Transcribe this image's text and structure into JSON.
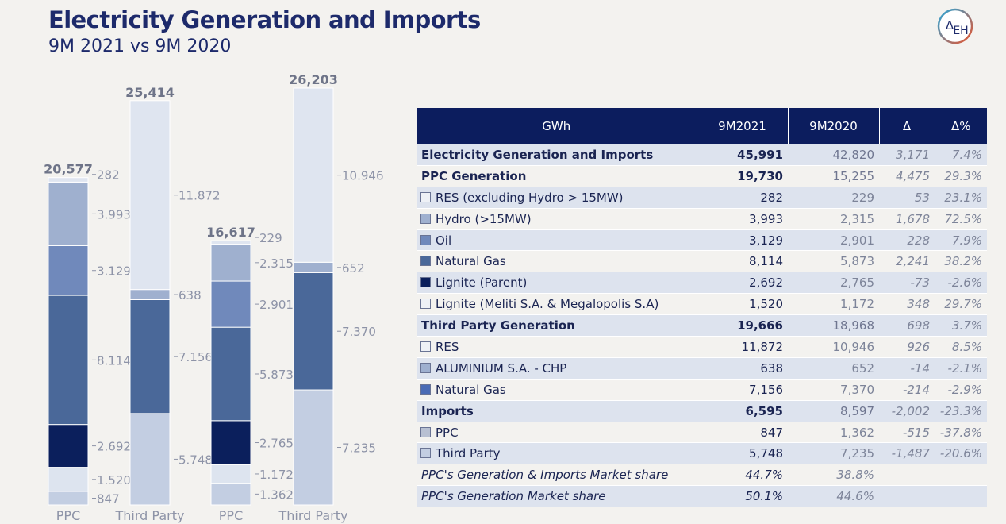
{
  "header": {
    "title": "Electricity Generation and Imports",
    "subtitle": "9M 2021 vs 9M 2020"
  },
  "logo": {
    "icon": "deh-logo-icon",
    "text_main": "Δ",
    "text_sub": "EH",
    "ring_colors": [
      "#2aa6d9",
      "#e8542e"
    ]
  },
  "chart_data": {
    "type": "bar",
    "stacked": true,
    "categories": [
      "PPC",
      "Third Party",
      "PPC",
      "Third Party"
    ],
    "totals": [
      "20,577",
      "25,414",
      "16,617",
      "26,203"
    ],
    "total_values": [
      20577,
      25414,
      16617,
      26203
    ],
    "ylim": [
      0,
      26203
    ],
    "bars": [
      {
        "category": "PPC",
        "segments": [
          {
            "value": 847,
            "label": "847",
            "color": "#c3cee2"
          },
          {
            "value": 1520,
            "label": "1.520",
            "color": "#dde4ef"
          },
          {
            "value": 2692,
            "label": "2.692",
            "color": "#0b1f5c"
          },
          {
            "value": 8114,
            "label": "8.114",
            "color": "#4a6899"
          },
          {
            "value": 3129,
            "label": "3.129",
            "color": "#7089bb"
          },
          {
            "value": 3993,
            "label": "3.993",
            "color": "#9fb0cf"
          },
          {
            "value": 282,
            "label": "282",
            "color": "#dfe5f0"
          }
        ]
      },
      {
        "category": "Third Party",
        "segments": [
          {
            "value": 5748,
            "label": "5.748",
            "color": "#c3cee2"
          },
          {
            "value": 7156,
            "label": "7.156",
            "color": "#4a6899"
          },
          {
            "value": 638,
            "label": "638",
            "color": "#9fb0cf"
          },
          {
            "value": 11872,
            "label": "11.872",
            "color": "#dfe5f0"
          }
        ]
      },
      {
        "category": "PPC",
        "segments": [
          {
            "value": 1362,
            "label": "1.362",
            "color": "#c3cee2"
          },
          {
            "value": 1172,
            "label": "1.172",
            "color": "#dde4ef"
          },
          {
            "value": 2765,
            "label": "2.765",
            "color": "#0b1f5c"
          },
          {
            "value": 5873,
            "label": "5.873",
            "color": "#4a6899"
          },
          {
            "value": 2901,
            "label": "2.901",
            "color": "#7089bb"
          },
          {
            "value": 2315,
            "label": "2.315",
            "color": "#9fb0cf"
          },
          {
            "value": 229,
            "label": "229",
            "color": "#dfe5f0"
          }
        ]
      },
      {
        "category": "Third Party",
        "segments": [
          {
            "value": 7235,
            "label": "7.235",
            "color": "#c3cee2"
          },
          {
            "value": 7370,
            "label": "7.370",
            "color": "#4a6899"
          },
          {
            "value": 652,
            "label": "652",
            "color": "#9fb0cf"
          },
          {
            "value": 10946,
            "label": "10.946",
            "color": "#dfe5f0"
          }
        ]
      }
    ]
  },
  "table": {
    "headers": [
      "GWh",
      "9M2021",
      "9M2020",
      "Δ",
      "Δ%"
    ],
    "rows": [
      {
        "kind": "main",
        "shade": true,
        "swatch": "",
        "label": "Electricity Generation and Imports",
        "v2021": "45,991",
        "v2020": "42,820",
        "delta": "3,171",
        "pct": "7.4%"
      },
      {
        "kind": "main",
        "shade": false,
        "swatch": "",
        "label": "PPC Generation",
        "v2021": "19,730",
        "v2020": "15,255",
        "delta": "4,475",
        "pct": "29.3%"
      },
      {
        "kind": "sub",
        "shade": true,
        "swatch": "#eef1f6",
        "label": "RES (excluding Hydro > 15MW)",
        "v2021": "282",
        "v2020": "229",
        "delta": "53",
        "pct": "23.1%"
      },
      {
        "kind": "sub",
        "shade": false,
        "swatch": "#9fb0cf",
        "label": "Hydro (>15MW)",
        "v2021": "3,993",
        "v2020": "2,315",
        "delta": "1,678",
        "pct": "72.5%"
      },
      {
        "kind": "sub",
        "shade": true,
        "swatch": "#7089bb",
        "label": "Oil",
        "v2021": "3,129",
        "v2020": "2,901",
        "delta": "228",
        "pct": "7.9%"
      },
      {
        "kind": "sub",
        "shade": false,
        "swatch": "#4a6899",
        "label": "Natural Gas",
        "v2021": "8,114",
        "v2020": "5,873",
        "delta": "2,241",
        "pct": "38.2%"
      },
      {
        "kind": "sub",
        "shade": true,
        "swatch": "#0b1f5c",
        "label": "Lignite (Parent)",
        "v2021": "2,692",
        "v2020": "2,765",
        "delta": "-73",
        "pct": "-2.6%"
      },
      {
        "kind": "sub",
        "shade": false,
        "swatch": "#eef1f6",
        "label": "Lignite (Meliti S.A. & Megalopolis S.A)",
        "v2021": "1,520",
        "v2020": "1,172",
        "delta": "348",
        "pct": "29.7%"
      },
      {
        "kind": "main",
        "shade": true,
        "swatch": "",
        "label": "Third Party Generation",
        "v2021": "19,666",
        "v2020": "18,968",
        "delta": "698",
        "pct": "3.7%"
      },
      {
        "kind": "sub",
        "shade": false,
        "swatch": "#eef1f6",
        "label": "RES",
        "v2021": "11,872",
        "v2020": "10,946",
        "delta": "926",
        "pct": "8.5%"
      },
      {
        "kind": "sub",
        "shade": true,
        "swatch": "#9fb0cf",
        "label": "ALUMINIUM S.A. - CHP",
        "v2021": "638",
        "v2020": "652",
        "delta": "-14",
        "pct": "-2.1%"
      },
      {
        "kind": "sub",
        "shade": false,
        "swatch": "#4a6bb5",
        "label": "Natural Gas",
        "v2021": "7,156",
        "v2020": "7,370",
        "delta": "-214",
        "pct": "-2.9%"
      },
      {
        "kind": "main",
        "shade": true,
        "swatch": "",
        "label": "Imports",
        "v2021": "6,595",
        "v2020": "8,597",
        "delta": "-2,002",
        "pct": "-23.3%"
      },
      {
        "kind": "sub",
        "shade": false,
        "swatch": "#b8c0d2",
        "label": "PPC",
        "v2021": "847",
        "v2020": "1,362",
        "delta": "-515",
        "pct": "-37.8%"
      },
      {
        "kind": "sub",
        "shade": true,
        "swatch": "#c3cee2",
        "label": "Third Party",
        "v2021": "5,748",
        "v2020": "7,235",
        "delta": "-1,487",
        "pct": "-20.6%"
      },
      {
        "kind": "ms",
        "shade": false,
        "swatch": "",
        "label": "PPC's Generation & Imports Market share",
        "v2021": "44.7%",
        "v2020": "38.8%",
        "delta": "",
        "pct": ""
      },
      {
        "kind": "ms",
        "shade": true,
        "swatch": "",
        "label": "PPC's Generation Market share",
        "v2021": "50.1%",
        "v2020": "44.6%",
        "delta": "",
        "pct": ""
      }
    ]
  }
}
